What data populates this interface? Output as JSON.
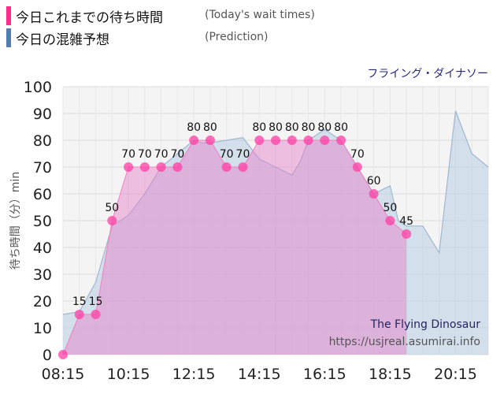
{
  "legend": {
    "today_label": "今日これまでの待ち時間",
    "today_en": "(Today's wait times)",
    "today_color": "#ff2d8f",
    "prediction_label": "今日の混雑予想",
    "prediction_en": "(Prediction)",
    "prediction_color": "#4f7fae"
  },
  "attraction_jp": "フライング・ダイナソー",
  "watermark": {
    "name": "The Flying Dinosaur",
    "url": "https://usjreal.asumirai.info"
  },
  "chart_data": {
    "type": "area",
    "ylabel": "待ち時間（分）min",
    "ylim": [
      0,
      100
    ],
    "yticks": [
      0,
      10,
      20,
      30,
      40,
      50,
      60,
      70,
      80,
      90,
      100
    ],
    "xlim": [
      "08:15",
      "21:15"
    ],
    "xticks": [
      "08:15",
      "10:15",
      "12:15",
      "14:15",
      "16:15",
      "18:15",
      "20:15"
    ],
    "grid": true,
    "series": [
      {
        "name": "今日これまでの待ち時間",
        "color": "#ff3fa4",
        "labeled": true,
        "points": [
          [
            "08:15",
            0
          ],
          [
            "08:45",
            15
          ],
          [
            "09:15",
            15
          ],
          [
            "09:45",
            50
          ],
          [
            "10:15",
            70
          ],
          [
            "10:45",
            70
          ],
          [
            "11:15",
            70
          ],
          [
            "11:45",
            70
          ],
          [
            "12:15",
            80
          ],
          [
            "12:45",
            80
          ],
          [
            "13:15",
            70
          ],
          [
            "13:45",
            70
          ],
          [
            "14:15",
            80
          ],
          [
            "14:45",
            80
          ],
          [
            "15:15",
            80
          ],
          [
            "15:45",
            80
          ],
          [
            "16:15",
            80
          ],
          [
            "16:45",
            80
          ],
          [
            "17:15",
            70
          ],
          [
            "17:45",
            60
          ],
          [
            "18:15",
            50
          ],
          [
            "18:45",
            45
          ]
        ]
      },
      {
        "name": "今日の混雑予想",
        "color": "#7aa0c4",
        "labeled": false,
        "points": [
          [
            "08:15",
            15
          ],
          [
            "08:45",
            16
          ],
          [
            "09:15",
            27
          ],
          [
            "09:45",
            48
          ],
          [
            "10:15",
            52
          ],
          [
            "10:45",
            60
          ],
          [
            "11:15",
            70
          ],
          [
            "11:45",
            75
          ],
          [
            "12:15",
            80
          ],
          [
            "12:30",
            79
          ],
          [
            "12:45",
            79
          ],
          [
            "13:15",
            80
          ],
          [
            "13:45",
            81
          ],
          [
            "14:15",
            73
          ],
          [
            "14:45",
            70
          ],
          [
            "15:15",
            67
          ],
          [
            "15:30",
            72
          ],
          [
            "15:45",
            80
          ],
          [
            "16:15",
            84
          ],
          [
            "16:45",
            80
          ],
          [
            "17:15",
            70
          ],
          [
            "17:45",
            60
          ],
          [
            "18:15",
            63
          ],
          [
            "18:30",
            50
          ],
          [
            "18:45",
            48
          ],
          [
            "19:15",
            48
          ],
          [
            "19:45",
            38
          ],
          [
            "20:15",
            91
          ],
          [
            "20:45",
            75
          ],
          [
            "21:15",
            70
          ]
        ]
      }
    ]
  }
}
